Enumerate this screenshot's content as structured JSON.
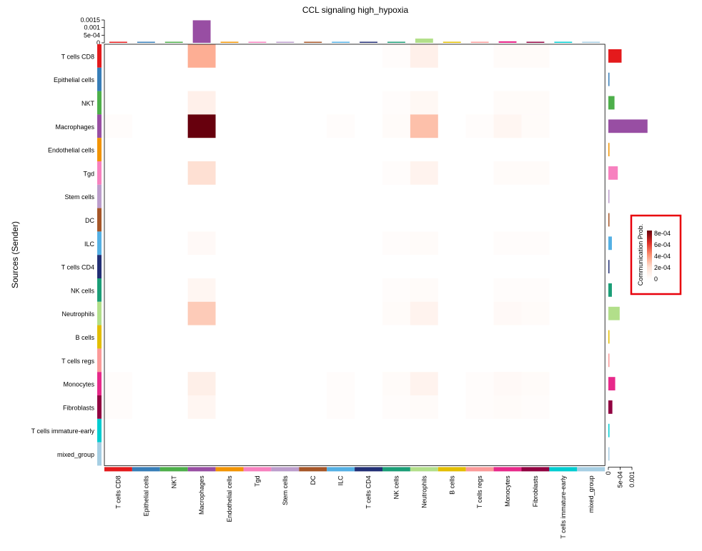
{
  "chart_data": {
    "type": "heatmap",
    "title": "CCL signaling high_hypoxia",
    "ylabel": "Sources (Sender)",
    "legend": {
      "title": "Communication Prob.",
      "ticks": [
        "8e-04",
        "6e-04",
        "4e-04",
        "2e-04",
        "0"
      ],
      "tick_values": [
        0.0008,
        0.0006,
        0.0004,
        0.0002,
        0
      ],
      "range": [
        0,
        0.00085
      ],
      "colors": [
        "#ffffff",
        "#fee0d2",
        "#fc9272",
        "#de2d26",
        "#67000d"
      ],
      "placement": "right"
    },
    "top_axis": {
      "ticks": [
        "0.0015",
        "0.001",
        "5e-04",
        "0"
      ],
      "tick_values": [
        0.0015,
        0.001,
        0.0005,
        0
      ],
      "max": 0.0015
    },
    "right_axis": {
      "ticks": [
        "0",
        "5e-04",
        "0.001"
      ],
      "tick_values": [
        0,
        0.0005,
        0.001
      ],
      "max": 0.001
    },
    "categories": [
      "T cells CD8",
      "Epithelial cells",
      "NKT",
      "Macrophages",
      "Endothelial cells",
      "Tgd",
      "Stem cells",
      "DC",
      "ILC",
      "T cells CD4",
      "NK cells",
      "Neutrophils",
      "B cells",
      "T cells regs",
      "Monocytes",
      "Fibroblasts",
      "T cells immature-early",
      "mixed_group"
    ],
    "category_colors": [
      "#E41A1C",
      "#377EB8",
      "#4DAF4A",
      "#984EA3",
      "#F29403",
      "#F781BF",
      "#BC9DCC",
      "#A65628",
      "#54B0E4",
      "#222F75",
      "#1B9E77",
      "#B2DF8A",
      "#E3BE00",
      "#FB9A99",
      "#E7298A",
      "#910241",
      "#00CDD1",
      "#A6CEE3"
    ],
    "matrix": [
      [
        0,
        0,
        0,
        0.00035,
        0,
        0,
        0,
        0,
        0,
        0,
        2e-05,
        0.0001,
        0,
        0,
        3e-05,
        3e-05,
        0,
        0
      ],
      [
        0,
        0,
        0,
        0,
        0,
        0,
        0,
        0,
        0,
        0,
        0,
        0,
        0,
        0,
        0,
        0,
        0,
        0
      ],
      [
        0,
        0,
        0,
        0.0001,
        0,
        0,
        0,
        0,
        0,
        0,
        2e-05,
        5e-05,
        0,
        0,
        3e-05,
        3e-05,
        0,
        0
      ],
      [
        2e-05,
        0,
        0,
        0.00085,
        0,
        0,
        0,
        0,
        2e-05,
        0,
        3e-05,
        0.0003,
        0,
        2e-05,
        6e-05,
        3e-05,
        0,
        0
      ],
      [
        0,
        0,
        0,
        0,
        0,
        0,
        0,
        0,
        0,
        0,
        0,
        0,
        0,
        0,
        0,
        0,
        0,
        0
      ],
      [
        0,
        0,
        0,
        0.00021,
        0,
        0,
        0,
        0,
        0,
        0,
        2e-05,
        8e-05,
        0,
        0,
        3e-05,
        3e-05,
        0,
        0
      ],
      [
        0,
        0,
        0,
        0,
        0,
        0,
        0,
        0,
        0,
        0,
        0,
        0,
        0,
        0,
        0,
        0,
        0,
        0
      ],
      [
        0,
        0,
        0,
        0,
        0,
        0,
        0,
        0,
        0,
        0,
        0,
        0,
        0,
        0,
        0,
        0,
        0,
        0
      ],
      [
        0,
        0,
        0,
        4e-05,
        0,
        0,
        0,
        0,
        0,
        0,
        2e-05,
        3e-05,
        0,
        0,
        2e-05,
        2e-05,
        0,
        0
      ],
      [
        0,
        0,
        0,
        0,
        0,
        0,
        0,
        0,
        0,
        0,
        0,
        0,
        0,
        0,
        0,
        0,
        0,
        0
      ],
      [
        0,
        0,
        0,
        6e-05,
        0,
        0,
        0,
        0,
        0,
        0,
        2e-05,
        3e-05,
        0,
        0,
        2e-05,
        2e-05,
        0,
        0
      ],
      [
        0,
        0,
        0,
        0.00027,
        0,
        0,
        0,
        0,
        0,
        0,
        3e-05,
        8e-05,
        0,
        0,
        4e-05,
        3e-05,
        0,
        0
      ],
      [
        0,
        0,
        0,
        0,
        0,
        0,
        0,
        0,
        0,
        0,
        0,
        0,
        0,
        0,
        0,
        0,
        0,
        0
      ],
      [
        0,
        0,
        0,
        0,
        0,
        0,
        0,
        0,
        0,
        0,
        0,
        0,
        0,
        0,
        0,
        0,
        0,
        0
      ],
      [
        2e-05,
        0,
        0,
        0.00011,
        0,
        0,
        0,
        0,
        2e-05,
        0,
        3e-05,
        8e-05,
        0,
        2e-05,
        4e-05,
        3e-05,
        0,
        0
      ],
      [
        2e-05,
        0,
        0,
        6e-05,
        0,
        0,
        0,
        0,
        2e-05,
        0,
        2e-05,
        3e-05,
        0,
        2e-05,
        3e-05,
        2e-05,
        0,
        0
      ],
      [
        0,
        0,
        0,
        0,
        0,
        0,
        0,
        0,
        0,
        0,
        0,
        0,
        0,
        0,
        0,
        0,
        0,
        0
      ],
      [
        0,
        0,
        0,
        0,
        0,
        0,
        0,
        0,
        0,
        0,
        0,
        0,
        0,
        0,
        0,
        0,
        0,
        0
      ]
    ],
    "column_sums": [
      6e-05,
      1e-05,
      1e-05,
      0.00148,
      1e-05,
      1e-05,
      1e-05,
      1e-05,
      1e-05,
      1e-05,
      4e-05,
      0.00028,
      1e-05,
      1e-05,
      0.0001,
      6e-05,
      1e-05,
      1e-05
    ],
    "row_sums": [
      0.00056,
      0,
      0.00026,
      0.00166,
      0,
      0.0004,
      0,
      0,
      0.00015,
      0,
      0.00015,
      0.00048,
      0,
      0,
      0.00029,
      0.00017,
      0,
      0
    ]
  }
}
